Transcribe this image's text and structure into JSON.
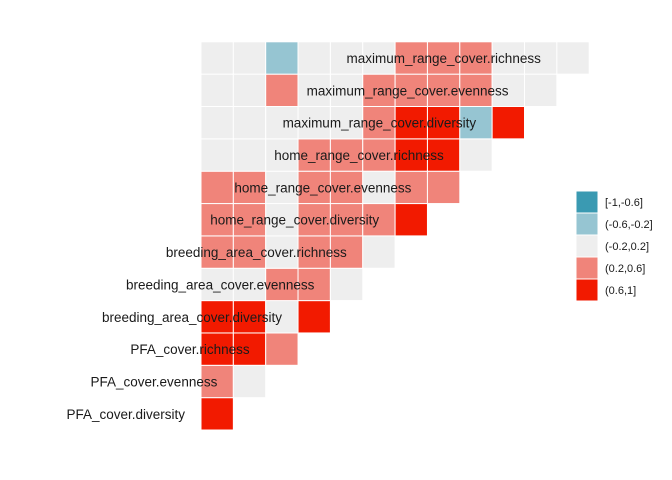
{
  "chart_data": {
    "type": "heatmap",
    "title": "",
    "variables": [
      "PFA_cover.diversity",
      "PFA_cover.evenness",
      "PFA_cover.richness",
      "breeding_area_cover.diversity",
      "breeding_area_cover.evenness",
      "breeding_area_cover.richness",
      "home_range_cover.diversity",
      "home_range_cover.evenness",
      "home_range_cover.richness",
      "maximum_range_cover.diversity",
      "maximum_range_cover.evenness",
      "maximum_range_cover.richness"
    ],
    "bins": [
      "[-1,-0.6]",
      "(-0.6,-0.2]",
      "(-0.2,0.2]",
      "(0.2,0.6]",
      "(0.6,1]"
    ],
    "bin_colors": [
      "#3a9ab2",
      "#96c5d2",
      "#eeeeee",
      "#f0847a",
      "#f21a00"
    ],
    "legend_position": "right",
    "cells": [
      [
        4
      ],
      [
        3,
        2
      ],
      [
        4,
        4,
        3
      ],
      [
        4,
        4,
        2,
        4
      ],
      [
        2,
        2,
        3,
        3,
        2
      ],
      [
        3,
        3,
        2,
        3,
        3,
        2
      ],
      [
        3,
        3,
        2,
        3,
        3,
        3,
        4
      ],
      [
        3,
        3,
        2,
        3,
        3,
        2,
        3,
        3
      ],
      [
        2,
        2,
        2,
        3,
        3,
        3,
        4,
        4,
        2
      ],
      [
        2,
        2,
        2,
        2,
        2,
        3,
        4,
        4,
        1,
        4
      ],
      [
        2,
        2,
        3,
        2,
        2,
        3,
        3,
        3,
        3,
        2,
        2
      ],
      [
        2,
        2,
        1,
        2,
        2,
        2,
        3,
        3,
        3,
        2,
        2,
        2
      ]
    ]
  }
}
